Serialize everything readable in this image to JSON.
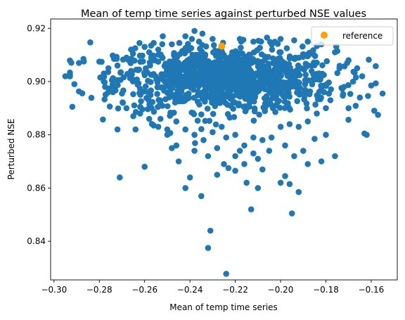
{
  "chart_data": {
    "type": "scatter",
    "title": "Mean of temp time series against perturbed NSE values",
    "xlabel": "Mean of temp time series",
    "ylabel": "Perturbed NSE",
    "xlim": [
      -0.3015,
      -0.1485
    ],
    "ylim": [
      0.8255,
      0.9235
    ],
    "xticks": [
      -0.3,
      -0.28,
      -0.26,
      -0.24,
      -0.22,
      -0.2,
      -0.18,
      -0.16
    ],
    "xtick_labels": [
      "−0.30",
      "−0.28",
      "−0.26",
      "−0.24",
      "−0.22",
      "−0.20",
      "−0.18",
      "−0.16"
    ],
    "yticks": [
      0.84,
      0.86,
      0.88,
      0.9,
      0.92
    ],
    "ytick_labels": [
      "0.84",
      "0.86",
      "0.88",
      "0.90",
      "0.92"
    ],
    "grid": false,
    "legend_position": "top-right",
    "series": [
      {
        "name": "",
        "color": "#1f77b4",
        "points": [
          [
            -0.295,
            0.902
          ],
          [
            -0.291,
            0.899
          ],
          [
            -0.289,
            0.8963
          ],
          [
            -0.289,
            0.907
          ],
          [
            -0.287,
            0.9085
          ],
          [
            -0.284,
            0.9147
          ],
          [
            -0.28,
            0.9075
          ],
          [
            -0.278,
            0.903
          ],
          [
            -0.276,
            0.905
          ],
          [
            -0.274,
            0.901
          ],
          [
            -0.272,
            0.882
          ],
          [
            -0.271,
            0.864
          ],
          [
            -0.27,
            0.8955
          ],
          [
            -0.268,
            0.909
          ],
          [
            -0.266,
            0.912
          ],
          [
            -0.264,
            0.882
          ],
          [
            -0.262,
            0.8905
          ],
          [
            -0.26,
            0.868
          ],
          [
            -0.258,
            0.911
          ],
          [
            -0.256,
            0.9145
          ],
          [
            -0.254,
            0.883
          ],
          [
            -0.252,
            0.917
          ],
          [
            -0.25,
            0.88
          ],
          [
            -0.248,
            0.875
          ],
          [
            -0.245,
            0.87
          ],
          [
            -0.242,
            0.86
          ],
          [
            -0.24,
            0.864
          ],
          [
            -0.238,
            0.919
          ],
          [
            -0.235,
            0.857
          ],
          [
            -0.232,
            0.8375
          ],
          [
            -0.231,
            0.844
          ],
          [
            -0.228,
            0.865
          ],
          [
            -0.225,
            0.869
          ],
          [
            -0.224,
            0.8278
          ],
          [
            -0.223,
            0.8675
          ],
          [
            -0.22,
            0.8665
          ],
          [
            -0.218,
            0.874
          ],
          [
            -0.215,
            0.862
          ],
          [
            -0.213,
            0.852
          ],
          [
            -0.21,
            0.86
          ],
          [
            -0.208,
            0.867
          ],
          [
            -0.205,
            0.874
          ],
          [
            -0.2,
            0.862
          ],
          [
            -0.198,
            0.8645
          ],
          [
            -0.196,
            0.8615
          ],
          [
            -0.195,
            0.8505
          ],
          [
            -0.192,
            0.8585
          ],
          [
            -0.19,
            0.874
          ],
          [
            -0.188,
            0.869
          ],
          [
            -0.185,
            0.8785
          ],
          [
            -0.182,
            0.87
          ],
          [
            -0.18,
            0.88
          ],
          [
            -0.176,
            0.872
          ],
          [
            -0.172,
            0.898
          ],
          [
            -0.17,
            0.89
          ],
          [
            -0.168,
            0.9
          ],
          [
            -0.165,
            0.894
          ],
          [
            -0.163,
            0.8805
          ],
          [
            -0.162,
            0.88
          ],
          [
            -0.16,
            0.8985
          ],
          [
            -0.157,
            0.8875
          ],
          [
            -0.155,
            0.8955
          ],
          [
            -0.164,
            0.902
          ],
          [
            -0.17,
            0.908
          ],
          [
            -0.176,
            0.911
          ],
          [
            -0.182,
            0.914
          ],
          [
            -0.188,
            0.915
          ],
          [
            -0.194,
            0.9155
          ],
          [
            -0.2,
            0.916
          ],
          [
            -0.206,
            0.9165
          ],
          [
            -0.212,
            0.915
          ],
          [
            -0.218,
            0.916
          ],
          [
            -0.23,
            0.916
          ],
          [
            -0.236,
            0.915
          ],
          [
            -0.242,
            0.917
          ],
          [
            -0.248,
            0.914
          ],
          [
            -0.254,
            0.912
          ],
          [
            -0.26,
            0.913
          ],
          [
            -0.266,
            0.904
          ],
          [
            -0.272,
            0.906
          ],
          [
            -0.278,
            0.9
          ],
          [
            -0.274,
            0.896
          ],
          [
            -0.268,
            0.89
          ],
          [
            -0.265,
            0.887
          ],
          [
            -0.262,
            0.888
          ],
          [
            -0.258,
            0.886
          ],
          [
            -0.256,
            0.8835
          ],
          [
            -0.253,
            0.886
          ],
          [
            -0.248,
            0.888
          ],
          [
            -0.246,
            0.885
          ],
          [
            -0.242,
            0.882
          ],
          [
            -0.238,
            0.88
          ],
          [
            -0.234,
            0.878
          ],
          [
            -0.23,
            0.881
          ],
          [
            -0.226,
            0.883
          ],
          [
            -0.224,
            0.879
          ],
          [
            -0.22,
            0.88
          ],
          [
            -0.216,
            0.876
          ],
          [
            -0.212,
            0.879
          ],
          [
            -0.208,
            0.878
          ],
          [
            -0.204,
            0.879
          ],
          [
            -0.2,
            0.883
          ],
          [
            -0.196,
            0.884
          ],
          [
            -0.192,
            0.883
          ],
          [
            -0.188,
            0.885
          ],
          [
            -0.184,
            0.888
          ],
          [
            -0.18,
            0.89
          ],
          [
            -0.178,
            0.893
          ],
          [
            -0.174,
            0.905
          ],
          [
            -0.238,
            0.874
          ],
          [
            -0.232,
            0.872
          ],
          [
            -0.228,
            0.875
          ],
          [
            -0.22,
            0.872
          ],
          [
            -0.216,
            0.869
          ],
          [
            -0.212,
            0.873
          ],
          [
            -0.21,
            0.871
          ],
          [
            -0.198,
            0.876
          ],
          [
            -0.194,
            0.872
          ],
          [
            -0.246,
            0.876
          ],
          [
            -0.25,
            0.882
          ]
        ]
      },
      {
        "name": "reference",
        "color": "#ff9f00",
        "points": [
          [
            -0.226,
            0.9133
          ]
        ]
      }
    ],
    "cluster": {
      "center": [
        -0.224,
        0.901
      ],
      "spread": [
        0.024,
        0.006
      ],
      "count": 1100
    }
  }
}
